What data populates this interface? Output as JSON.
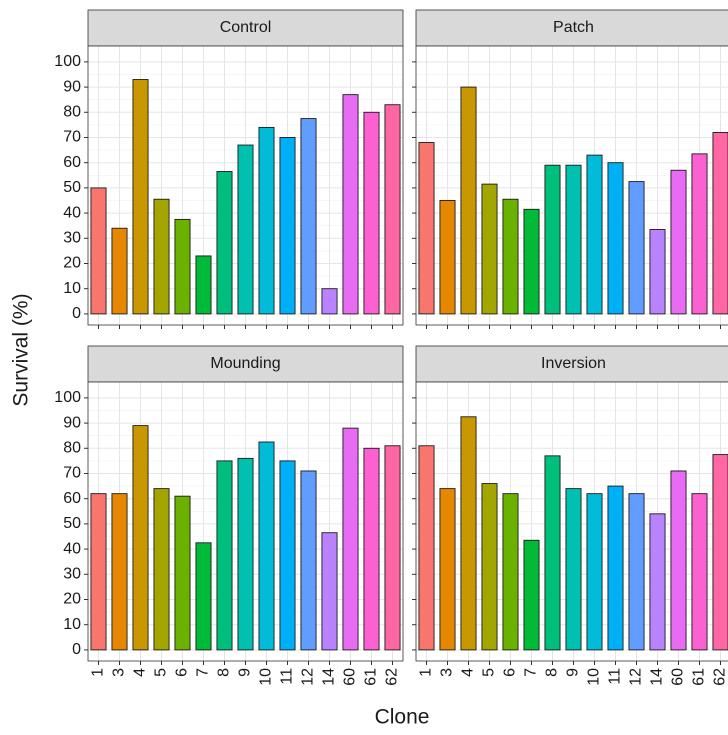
{
  "chart_data": [
    {
      "type": "bar",
      "title": "Control",
      "ylabel": "Survival (%)",
      "xlabel": "Clone",
      "categories": [
        "1",
        "3",
        "4",
        "5",
        "6",
        "7",
        "8",
        "9",
        "10",
        "11",
        "12",
        "14",
        "60",
        "61",
        "62"
      ],
      "values": [
        50,
        34,
        93,
        45.5,
        37.5,
        23,
        56.5,
        67,
        74,
        70,
        77.5,
        10,
        87,
        80,
        83
      ],
      "colors": [
        "#F8766D",
        "#E58700",
        "#C99800",
        "#A3A500",
        "#6BB100",
        "#00BA38",
        "#00BF7D",
        "#00C0AF",
        "#00BCD8",
        "#00B0F6",
        "#619CFF",
        "#B983FF",
        "#E76BF3",
        "#FD61D1",
        "#FF67A4"
      ],
      "ylim": [
        -4.4,
        106.3
      ],
      "yticks": [
        0,
        10,
        20,
        30,
        40,
        50,
        60,
        70,
        80,
        90,
        100
      ],
      "grid": true
    },
    {
      "type": "bar",
      "title": "Patch",
      "categories": [
        "1",
        "3",
        "4",
        "5",
        "6",
        "7",
        "8",
        "9",
        "10",
        "11",
        "12",
        "14",
        "60",
        "61",
        "62"
      ],
      "values": [
        68,
        45,
        90,
        51.5,
        45.5,
        41.5,
        59,
        59,
        63,
        60,
        52.5,
        33.5,
        57,
        63.5,
        72
      ],
      "colors": [
        "#F8766D",
        "#E58700",
        "#C99800",
        "#A3A500",
        "#6BB100",
        "#00BA38",
        "#00BF7D",
        "#00C0AF",
        "#00BCD8",
        "#00B0F6",
        "#619CFF",
        "#B983FF",
        "#E76BF3",
        "#FD61D1",
        "#FF67A4"
      ],
      "ylim": [
        -4.4,
        106.3
      ],
      "yticks": [
        0,
        10,
        20,
        30,
        40,
        50,
        60,
        70,
        80,
        90,
        100
      ],
      "grid": true
    },
    {
      "type": "bar",
      "title": "Mounding",
      "categories": [
        "1",
        "3",
        "4",
        "5",
        "6",
        "7",
        "8",
        "9",
        "10",
        "11",
        "12",
        "14",
        "60",
        "61",
        "62"
      ],
      "values": [
        62,
        62,
        89,
        64,
        61,
        42.5,
        75,
        76,
        82.5,
        75,
        71,
        46.5,
        88,
        80,
        81
      ],
      "colors": [
        "#F8766D",
        "#E58700",
        "#C99800",
        "#A3A500",
        "#6BB100",
        "#00BA38",
        "#00BF7D",
        "#00C0AF",
        "#00BCD8",
        "#00B0F6",
        "#619CFF",
        "#B983FF",
        "#E76BF3",
        "#FD61D1",
        "#FF67A4"
      ],
      "ylim": [
        -4.4,
        106.3
      ],
      "yticks": [
        0,
        10,
        20,
        30,
        40,
        50,
        60,
        70,
        80,
        90,
        100
      ],
      "grid": true
    },
    {
      "type": "bar",
      "title": "Inversion",
      "categories": [
        "1",
        "3",
        "4",
        "5",
        "6",
        "7",
        "8",
        "9",
        "10",
        "11",
        "12",
        "14",
        "60",
        "61",
        "62"
      ],
      "values": [
        81,
        64,
        92.5,
        66,
        62,
        43.5,
        77,
        64,
        62,
        65,
        62,
        54,
        71,
        62,
        77.5
      ],
      "colors": [
        "#F8766D",
        "#E58700",
        "#C99800",
        "#A3A500",
        "#6BB100",
        "#00BA38",
        "#00BF7D",
        "#00C0AF",
        "#00BCD8",
        "#00B0F6",
        "#619CFF",
        "#B983FF",
        "#E76BF3",
        "#FD61D1",
        "#FF67A4"
      ],
      "ylim": [
        -4.4,
        106.3
      ],
      "yticks": [
        0,
        10,
        20,
        30,
        40,
        50,
        60,
        70,
        80,
        90,
        100
      ],
      "grid": true
    }
  ]
}
